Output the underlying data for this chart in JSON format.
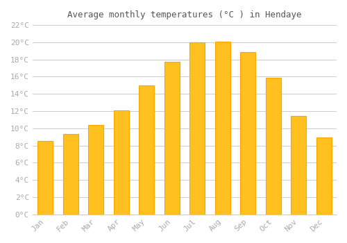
{
  "title": "Average monthly temperatures (°C ) in Hendaye",
  "months": [
    "Jan",
    "Feb",
    "Mar",
    "Apr",
    "May",
    "Jun",
    "Jul",
    "Aug",
    "Sep",
    "Oct",
    "Nov",
    "Dec"
  ],
  "temperatures": [
    8.5,
    9.3,
    10.4,
    12.1,
    15.0,
    17.7,
    20.0,
    20.1,
    18.9,
    15.9,
    11.4,
    8.9
  ],
  "bar_color_face": "#FFC020",
  "bar_color_edge": "#FFA500",
  "background_color": "#FFFFFF",
  "grid_color": "#CCCCCC",
  "tick_label_color": "#AAAAAA",
  "title_color": "#555555",
  "ylim": [
    0,
    22
  ],
  "yticks": [
    0,
    2,
    4,
    6,
    8,
    10,
    12,
    14,
    16,
    18,
    20,
    22
  ],
  "figsize": [
    5.0,
    3.5
  ],
  "dpi": 100
}
